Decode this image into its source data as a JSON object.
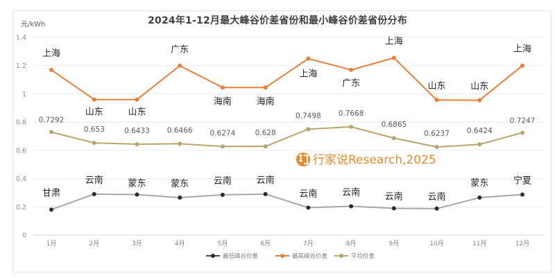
{
  "chart_data": {
    "type": "line",
    "title": "2024年1-12月最大峰谷价差省份和最小峰谷价差省份分布",
    "ylabel": "元/kWh",
    "xlabel": "",
    "ylim": [
      0,
      1.4
    ],
    "yticks": [
      "0",
      "0.2",
      "0.4",
      "0.6",
      "0.8",
      "1",
      "1.2",
      "1.4"
    ],
    "grid": true,
    "legend_position": "bottom",
    "categories": [
      "1月",
      "2月",
      "3月",
      "4月",
      "5月",
      "6月",
      "7月",
      "8月",
      "9月",
      "10月",
      "11月",
      "12月"
    ],
    "series": [
      {
        "name": "最低峰谷价差",
        "color": "#262a3b",
        "line_color": "#a6a6a6",
        "values": [
          0.18,
          0.29,
          0.287,
          0.265,
          0.285,
          0.29,
          0.194,
          0.204,
          0.189,
          0.187,
          0.265,
          0.287
        ],
        "labels": [
          "甘肃",
          "云南",
          "蒙东",
          "蒙东",
          "云南",
          "云南",
          "云南",
          "云南",
          "云南",
          "云南",
          "蒙东",
          "宁夏"
        ]
      },
      {
        "name": "最高峰谷价差",
        "color": "#e87e37",
        "values": [
          1.17,
          0.96,
          0.96,
          1.2,
          1.045,
          1.045,
          1.25,
          1.17,
          1.255,
          0.957,
          0.955,
          1.2
        ],
        "labels": [
          "上海",
          "山东",
          "山东",
          "广东",
          "海南",
          "海南",
          "上海",
          "广东",
          "上海",
          "山东",
          "山东",
          "上海"
        ]
      },
      {
        "name": "平均价差",
        "color": "#b8a46c",
        "values": [
          0.7292,
          0.653,
          0.6433,
          0.6466,
          0.6274,
          0.628,
          0.7498,
          0.7668,
          0.6865,
          0.6237,
          0.6424,
          0.7247
        ],
        "labels": [
          "0.7292",
          "0.653",
          "0.6433",
          "0.6466",
          "0.6274",
          "0.628",
          "0.7498",
          "0.7668",
          "0.6865",
          "0.6237",
          "0.6424",
          "0.7247"
        ]
      }
    ]
  },
  "watermark": {
    "text": "行家说Research,2025",
    "icon": "brand-logo-icon",
    "color": "#e58a2e"
  }
}
